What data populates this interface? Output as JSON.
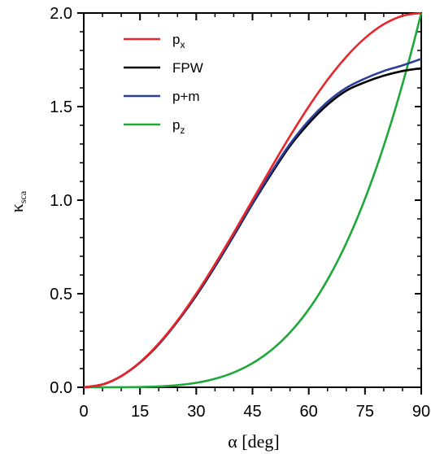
{
  "chart_data": {
    "type": "line",
    "xlabel": "α [deg]",
    "ylabel": "κ",
    "ylabel_sub": "sca",
    "xlim": [
      0,
      90
    ],
    "ylim": [
      0,
      2.0
    ],
    "xticks": [
      0,
      15,
      30,
      45,
      60,
      75,
      90
    ],
    "xtick_labels": [
      "0",
      "15",
      "30",
      "45",
      "60",
      "75",
      "90"
    ],
    "yticks": [
      0,
      0.5,
      1.0,
      1.5,
      2.0
    ],
    "ytick_labels": [
      "0.0",
      "0.5",
      "1.0",
      "1.5",
      "2.0"
    ],
    "grid": false,
    "legend_position": "top-left",
    "x": [
      0,
      5,
      10,
      15,
      20,
      25,
      30,
      35,
      40,
      45,
      50,
      55,
      60,
      65,
      70,
      75,
      80,
      85,
      90
    ],
    "series": [
      {
        "name": "p",
        "name_sub": "x",
        "color": "#e8262a",
        "values": [
          0.0,
          0.015,
          0.06,
          0.134,
          0.234,
          0.357,
          0.5,
          0.658,
          0.826,
          1.0,
          1.174,
          1.342,
          1.5,
          1.643,
          1.766,
          1.866,
          1.94,
          1.985,
          2.0
        ]
      },
      {
        "name": "FPW",
        "color": "#000000",
        "values": [
          0.0,
          0.015,
          0.06,
          0.132,
          0.23,
          0.352,
          0.49,
          0.645,
          0.81,
          0.98,
          1.14,
          1.29,
          1.41,
          1.51,
          1.585,
          1.63,
          1.665,
          1.69,
          1.705
        ]
      },
      {
        "name": "p+m",
        "color": "#2a3f9a",
        "values": [
          0.0,
          0.015,
          0.06,
          0.133,
          0.232,
          0.354,
          0.495,
          0.65,
          0.815,
          0.985,
          1.15,
          1.3,
          1.425,
          1.525,
          1.6,
          1.65,
          1.69,
          1.72,
          1.755
        ]
      },
      {
        "name": "p",
        "name_sub": "z",
        "color": "#1fa83a",
        "values": [
          0.0,
          0.0,
          0.001,
          0.005,
          0.014,
          0.032,
          0.063,
          0.109,
          0.171,
          0.25,
          0.346,
          0.459,
          0.587,
          0.729,
          0.883,
          1.045,
          1.213,
          1.385,
          2.0
        ]
      }
    ]
  }
}
